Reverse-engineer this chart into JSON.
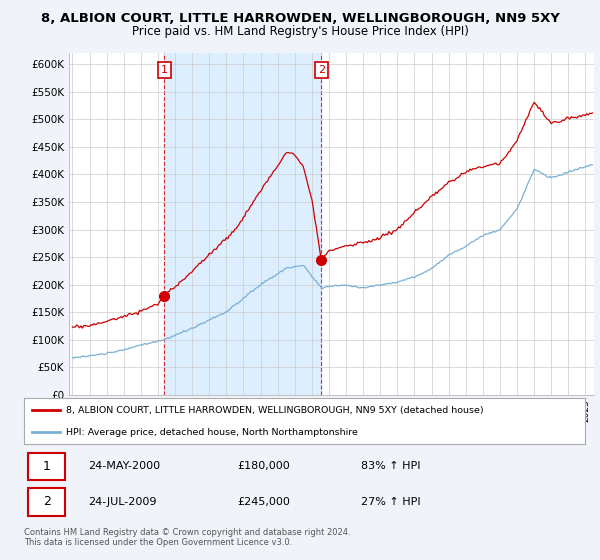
{
  "title": "8, ALBION COURT, LITTLE HARROWDEN, WELLINGBOROUGH, NN9 5XY",
  "subtitle": "Price paid vs. HM Land Registry's House Price Index (HPI)",
  "background_color": "#f0f4fa",
  "plot_background": "#ffffff",
  "highlight_color": "#ddeeff",
  "red_line_color": "#cc0000",
  "blue_line_color": "#7ab0d4",
  "purchase1_year": 2000.38,
  "purchase1_price": 180000,
  "purchase1_label": "1",
  "purchase2_year": 2009.55,
  "purchase2_price": 245000,
  "purchase2_label": "2",
  "ylim_min": 0,
  "ylim_max": 620000,
  "xlim_min": 1994.8,
  "xlim_max": 2025.5,
  "legend_line1": "8, ALBION COURT, LITTLE HARROWDEN, WELLINGBOROUGH, NN9 5XY (detached house)",
  "legend_line2": "HPI: Average price, detached house, North Northamptonshire",
  "footer": "Contains HM Land Registry data © Crown copyright and database right 2024.\nThis data is licensed under the Open Government Licence v3.0."
}
